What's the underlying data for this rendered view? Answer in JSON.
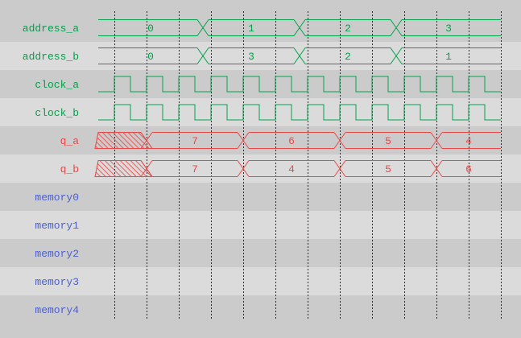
{
  "palette": {
    "background": "#cbcbcb",
    "row_alt": "#dbdbdb",
    "grid": "#2e2e2e",
    "green": "#00a34a",
    "red": "#ec4747",
    "blue": "#4a5fd2"
  },
  "timeline": {
    "total_units": 25,
    "grid_first_unit": 1,
    "grid_step_units": 2,
    "grid_line_count": 13
  },
  "signals": [
    {
      "id": "address_a",
      "label": "address_a",
      "color": "green",
      "kind": "bus",
      "segments": [
        {
          "value": "0",
          "start": 0,
          "end": 6.5
        },
        {
          "value": "1",
          "start": 6.5,
          "end": 12.5
        },
        {
          "value": "2",
          "start": 12.5,
          "end": 18.5
        },
        {
          "value": "3",
          "start": 18.5,
          "end": 25
        }
      ]
    },
    {
      "id": "address_b",
      "label": "address_b",
      "color": "green",
      "kind": "bus",
      "segments": [
        {
          "value": "0",
          "start": 0,
          "end": 6.5
        },
        {
          "value": "3",
          "start": 6.5,
          "end": 12.5
        },
        {
          "value": "2",
          "start": 12.5,
          "end": 18.5
        },
        {
          "value": "1",
          "start": 18.5,
          "end": 25
        }
      ]
    },
    {
      "id": "clock_a",
      "label": "clock_a",
      "color": "green",
      "kind": "clock",
      "start_level": "low",
      "first_rise": 1,
      "toggle_every": 1,
      "last_toggle": 24,
      "end": 25
    },
    {
      "id": "clock_b",
      "label": "clock_b",
      "color": "green",
      "kind": "clock",
      "start_level": "low",
      "first_rise": 1,
      "toggle_every": 1,
      "last_toggle": 24,
      "end": 25
    },
    {
      "id": "q_a",
      "label": "q_a",
      "color": "red",
      "kind": "bus",
      "segments": [
        {
          "value": "",
          "unknown": true,
          "start": 0,
          "end": 3
        },
        {
          "value": "7",
          "start": 3,
          "end": 9
        },
        {
          "value": "6",
          "start": 9,
          "end": 15
        },
        {
          "value": "5",
          "start": 15,
          "end": 21
        },
        {
          "value": "4",
          "start": 21,
          "end": 25
        }
      ]
    },
    {
      "id": "q_b",
      "label": "q_b",
      "color": "red",
      "kind": "bus",
      "segments": [
        {
          "value": "",
          "unknown": true,
          "start": 0,
          "end": 3
        },
        {
          "value": "7",
          "start": 3,
          "end": 9
        },
        {
          "value": "4",
          "start": 9,
          "end": 15
        },
        {
          "value": "5",
          "start": 15,
          "end": 21
        },
        {
          "value": "6",
          "start": 21,
          "end": 25
        }
      ]
    },
    {
      "id": "memory0",
      "label": "memory0",
      "color": "blue",
      "kind": "empty"
    },
    {
      "id": "memory1",
      "label": "memory1",
      "color": "blue",
      "kind": "empty"
    },
    {
      "id": "memory2",
      "label": "memory2",
      "color": "blue",
      "kind": "empty"
    },
    {
      "id": "memory3",
      "label": "memory3",
      "color": "blue",
      "kind": "empty"
    },
    {
      "id": "memory4",
      "label": "memory4",
      "color": "blue",
      "kind": "empty"
    }
  ]
}
